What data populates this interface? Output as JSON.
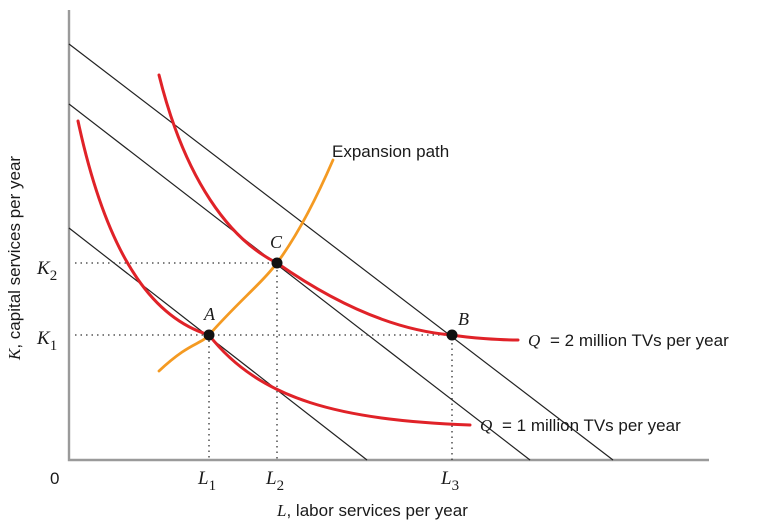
{
  "axes": {
    "y_label": "capital services per year",
    "y_var": "K",
    "x_label": "labor services per year",
    "x_var": "L",
    "origin": "0"
  },
  "ticks": {
    "x": [
      {
        "base": "L",
        "sub": "1"
      },
      {
        "base": "L",
        "sub": "2"
      },
      {
        "base": "L",
        "sub": "3"
      }
    ],
    "y": [
      {
        "base": "K",
        "sub": "1"
      },
      {
        "base": "K",
        "sub": "2"
      }
    ]
  },
  "points": {
    "a": "A",
    "b": "B",
    "c": "C"
  },
  "curves": {
    "expansion_path": "Expansion path",
    "isoquant_high": {
      "var": "Q",
      "text": "= 2 million TVs per year"
    },
    "isoquant_low": {
      "var": "Q",
      "text": "= 1 million TVs per year"
    }
  },
  "colors": {
    "isoquant": "#e02228",
    "expansion_path": "#f49a22",
    "isocost": "#222222",
    "axis": "#9a9a9a"
  }
}
